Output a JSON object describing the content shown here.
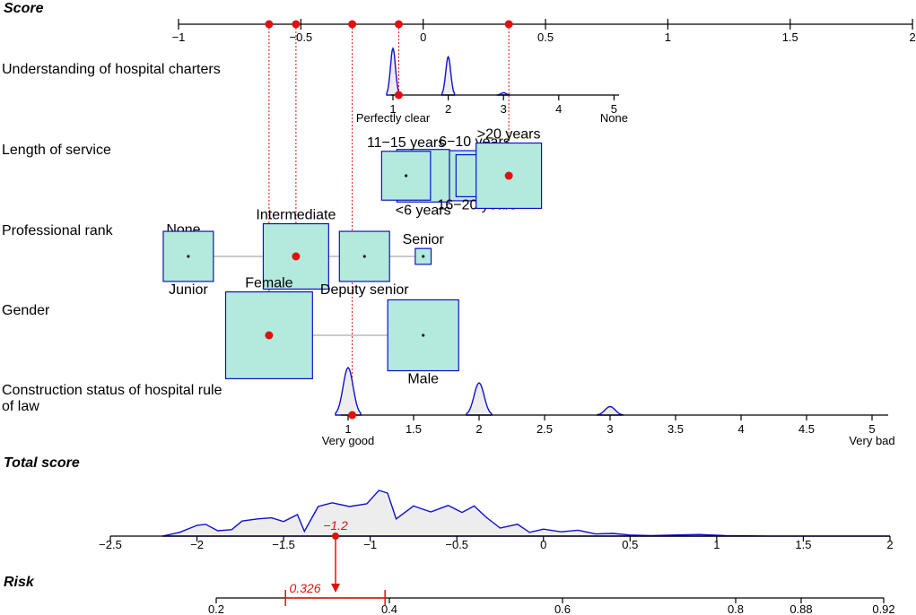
{
  "chart_data": {
    "type": "nomogram",
    "score_axis": {
      "title": "Score",
      "ticks": [
        -1,
        -0.5,
        0,
        0.5,
        1,
        1.5,
        2
      ],
      "tick_labels": [
        "−1",
        "−0.5",
        "0",
        "0.5",
        "1",
        "1.5",
        "2"
      ],
      "range": [
        -1,
        2
      ]
    },
    "variables": [
      {
        "name": "Understanding of hospital charters",
        "kind": "ordinal",
        "axis_ticks": [
          1,
          2,
          3,
          4,
          5
        ],
        "axis_labels": [
          "1",
          "2",
          "3",
          "4",
          "5"
        ],
        "end_labels": [
          "Perfectly clear",
          "None"
        ],
        "density": [
          {
            "level": 1,
            "height": 1.0
          },
          {
            "level": 2,
            "height": 0.82
          },
          {
            "level": 3,
            "height": 0.05
          }
        ],
        "selected_level": 1,
        "selected_score": -0.1
      },
      {
        "name": "Length of service",
        "kind": "categorical",
        "levels": [
          {
            "label": "<6 years",
            "score": 0.0,
            "freq": 0.22
          },
          {
            "label": "11−15 years",
            "score": -0.07,
            "freq": 0.19
          },
          {
            "label": "6−10 years",
            "score": 0.21,
            "freq": 0.2
          },
          {
            "label": "16−20 years",
            "score": 0.22,
            "freq": 0.14
          },
          {
            "label": ">20 years",
            "score": 0.35,
            "freq": 0.34
          }
        ],
        "selected_level": ">20 years",
        "selected_score": 0.35
      },
      {
        "name": "Professional rank",
        "kind": "categorical",
        "levels": [
          {
            "label": "None",
            "score": -0.98,
            "freq": 0.1
          },
          {
            "label": "Junior",
            "score": -0.96,
            "freq": 0.2
          },
          {
            "label": "Intermediate",
            "score": -0.52,
            "freq": 0.34
          },
          {
            "label": "Deputy senior",
            "score": -0.24,
            "freq": 0.2
          },
          {
            "label": "Senior",
            "score": 0.0,
            "freq": 0.02
          }
        ],
        "selected_level": "Intermediate",
        "selected_score": -0.52
      },
      {
        "name": "Gender",
        "kind": "categorical",
        "levels": [
          {
            "label": "Female",
            "score": -0.63,
            "freq": 0.6
          },
          {
            "label": "Male",
            "score": 0.0,
            "freq": 0.4
          }
        ],
        "selected_level": "Female",
        "selected_score": -0.63
      },
      {
        "name": "Construction status of hospital rule of law",
        "kind": "ordinal",
        "axis_ticks": [
          1,
          1.5,
          2,
          2.5,
          3,
          3.5,
          4,
          4.5,
          5
        ],
        "axis_labels": [
          "1",
          "1.5",
          "2",
          "2.5",
          "3",
          "3.5",
          "4",
          "4.5",
          "5"
        ],
        "end_labels": [
          "Very good",
          "Very bad"
        ],
        "density": [
          {
            "level": 1,
            "height": 1.0
          },
          {
            "level": 2,
            "height": 0.68
          },
          {
            "level": 3,
            "height": 0.18
          }
        ],
        "selected_level": 1,
        "selected_score": -0.29
      }
    ],
    "total_score_axis": {
      "title": "Total score",
      "ticks": [
        -2.5,
        -2,
        -1.5,
        -1,
        -0.5,
        0,
        0.5,
        1,
        1.5,
        2
      ],
      "tick_labels": [
        "−2.5",
        "−2",
        "−1.5",
        "−1",
        "−0.5",
        "0",
        "0.5",
        "1",
        "1.5",
        "2"
      ],
      "range": [
        -2.5,
        2
      ],
      "density": {
        "x": [
          -2.2,
          -2.1,
          -2.0,
          -1.95,
          -1.88,
          -1.8,
          -1.74,
          -1.65,
          -1.57,
          -1.5,
          -1.42,
          -1.38,
          -1.3,
          -1.22,
          -1.12,
          -1.02,
          -0.95,
          -0.9,
          -0.85,
          -0.75,
          -0.65,
          -0.55,
          -0.47,
          -0.4,
          -0.33,
          -0.25,
          -0.15,
          -0.08,
          0.0,
          0.1,
          0.2,
          0.3,
          0.4,
          0.5,
          0.62,
          0.75,
          0.9,
          1.05,
          1.3,
          1.6,
          2.0
        ],
        "y": [
          0.0,
          0.07,
          0.2,
          0.22,
          0.1,
          0.12,
          0.28,
          0.32,
          0.34,
          0.27,
          0.4,
          0.09,
          0.55,
          0.62,
          0.55,
          0.6,
          0.85,
          0.8,
          0.32,
          0.56,
          0.45,
          0.57,
          0.44,
          0.56,
          0.35,
          0.15,
          0.22,
          0.07,
          0.13,
          0.08,
          0.11,
          0.04,
          0.05,
          0.02,
          0.01,
          0.02,
          0.03,
          0.01,
          0.0,
          0.0,
          0.0
        ]
      },
      "observed_total": -1.2,
      "observed_label": "−1.2"
    },
    "risk_axis": {
      "title": "Risk",
      "ticks": [
        0.2,
        0.4,
        0.6,
        0.8,
        0.88,
        0.92
      ],
      "tick_labels": [
        "0.2",
        "0.4",
        "0.6",
        "0.8",
        "0.88",
        "0.92"
      ],
      "predicted_risk": 0.326,
      "predicted_label": "0.326",
      "ci": [
        0.28,
        0.395
      ]
    },
    "colors": {
      "box_fill": "#b3eadd",
      "box_stroke": "#1010cc",
      "density_fill": "#ededed",
      "density_stroke": "#1010cc",
      "highlight": "#e01010"
    }
  }
}
